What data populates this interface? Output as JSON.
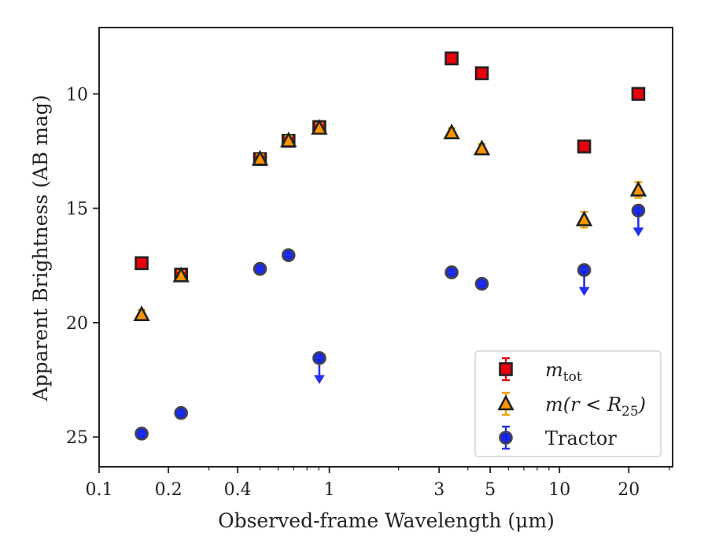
{
  "chart_data": {
    "type": "scatter",
    "title": "",
    "xlabel": "Observed-frame Wavelength (μm)",
    "ylabel": "Apparent Brightness (AB mag)",
    "xscale": "log",
    "xlim": [
      0.1,
      31
    ],
    "ylim": [
      26.3,
      7.1
    ],
    "y_inverted": true,
    "grid": false,
    "legend_position": "lower-right",
    "x_ticks": [
      {
        "value": 0.1,
        "label": "0.1"
      },
      {
        "value": 0.2,
        "label": "0.2"
      },
      {
        "value": 0.4,
        "label": "0.4"
      },
      {
        "value": 1,
        "label": "1"
      },
      {
        "value": 3,
        "label": "3"
      },
      {
        "value": 5,
        "label": "5"
      },
      {
        "value": 10,
        "label": "10"
      },
      {
        "value": 20,
        "label": "20"
      }
    ],
    "y_ticks": [
      {
        "value": 10,
        "label": "10"
      },
      {
        "value": 15,
        "label": "15"
      },
      {
        "value": 20,
        "label": "20"
      },
      {
        "value": 25,
        "label": "25"
      }
    ],
    "series": [
      {
        "name": "m_tot",
        "legend_main": "m",
        "legend_sub": "tot",
        "marker": "square",
        "color": "#e8000b",
        "error_color": "#e8000b",
        "points": [
          {
            "x": 0.153,
            "y": 17.4,
            "upper_limit": false
          },
          {
            "x": 0.227,
            "y": 17.9,
            "upper_limit": false
          },
          {
            "x": 0.5,
            "y": 12.85,
            "upper_limit": false
          },
          {
            "x": 0.665,
            "y": 12.05,
            "upper_limit": false
          },
          {
            "x": 0.905,
            "y": 11.45,
            "upper_limit": false
          },
          {
            "x": 3.4,
            "y": 8.45,
            "upper_limit": false
          },
          {
            "x": 4.6,
            "y": 9.1,
            "upper_limit": false
          },
          {
            "x": 12.8,
            "y": 12.3,
            "upper_limit": false
          },
          {
            "x": 22.0,
            "y": 10.0,
            "upper_limit": false
          }
        ]
      },
      {
        "name": "m(r < R_25)",
        "legend_main": "m(r < R",
        "legend_sub": "25",
        "legend_tail": ")",
        "marker": "triangle",
        "color": "#ff9500",
        "error_color": "#f0a000",
        "points": [
          {
            "x": 0.153,
            "y": 19.65,
            "upper_limit": false
          },
          {
            "x": 0.227,
            "y": 17.95,
            "upper_limit": false
          },
          {
            "x": 0.5,
            "y": 12.85,
            "upper_limit": false
          },
          {
            "x": 0.665,
            "y": 12.05,
            "upper_limit": false
          },
          {
            "x": 0.905,
            "y": 11.5,
            "upper_limit": false
          },
          {
            "x": 3.4,
            "y": 11.7,
            "upper_limit": false
          },
          {
            "x": 4.6,
            "y": 12.4,
            "upper_limit": false
          },
          {
            "x": 12.8,
            "y": 15.5,
            "upper_limit": false
          },
          {
            "x": 22.0,
            "y": 14.2,
            "upper_limit": false
          }
        ]
      },
      {
        "name": "Tractor",
        "marker": "circle",
        "color": "#0b1ee6",
        "error_color": "#2530ee",
        "points": [
          {
            "x": 0.153,
            "y": 24.85,
            "upper_limit": false
          },
          {
            "x": 0.227,
            "y": 23.95,
            "upper_limit": false
          },
          {
            "x": 0.5,
            "y": 17.65,
            "upper_limit": false
          },
          {
            "x": 0.665,
            "y": 17.05,
            "upper_limit": false
          },
          {
            "x": 0.905,
            "y": 21.55,
            "upper_limit": true
          },
          {
            "x": 3.4,
            "y": 17.8,
            "upper_limit": false
          },
          {
            "x": 4.6,
            "y": 18.3,
            "upper_limit": false
          },
          {
            "x": 12.8,
            "y": 17.7,
            "upper_limit": true
          },
          {
            "x": 22.0,
            "y": 15.1,
            "upper_limit": true
          }
        ]
      }
    ],
    "legend": [
      {
        "label": "m_tot",
        "marker": "square"
      },
      {
        "label": "m(r < R_25)",
        "marker": "triangle"
      },
      {
        "label": "Tractor",
        "marker": "circle"
      }
    ]
  }
}
